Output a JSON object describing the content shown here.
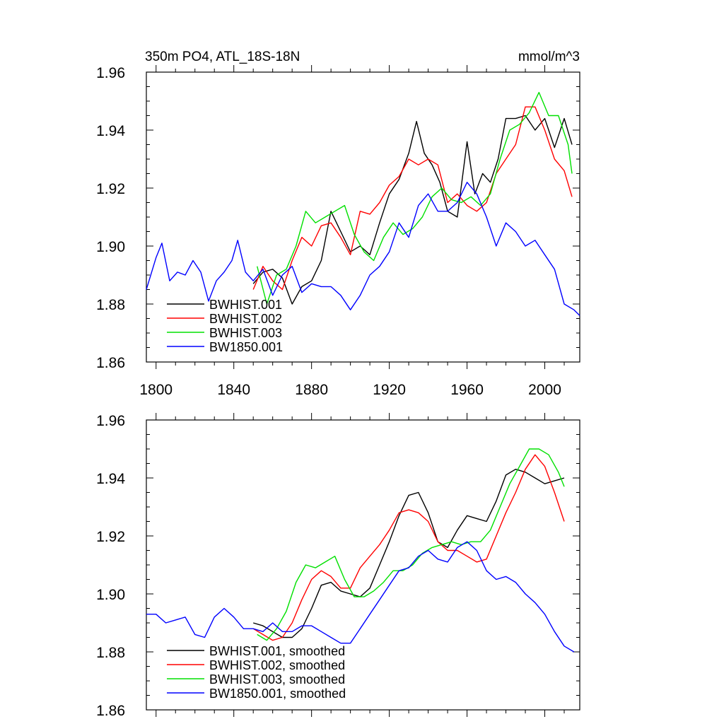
{
  "chart_data": [
    {
      "type": "line",
      "title": "350m PO4, ATL_18S-18N",
      "units": "mmol/m^3",
      "xlim": [
        1795,
        2018
      ],
      "ylim": [
        1.86,
        1.96
      ],
      "xticks": [
        1800,
        1840,
        1880,
        1920,
        1960,
        2000
      ],
      "xtick_labels": [
        "1800",
        "1840",
        "1880",
        "1920",
        "1960",
        "2000"
      ],
      "yticks": [
        1.86,
        1.88,
        1.9,
        1.92,
        1.94,
        1.96
      ],
      "ytick_labels": [
        "1.86",
        "1.88",
        "1.90",
        "1.92",
        "1.94",
        "1.96"
      ],
      "legend_position": "bottom-left",
      "series": [
        {
          "name": "BWHIST.001",
          "color": "#000000",
          "x": [
            1850,
            1855,
            1860,
            1865,
            1870,
            1875,
            1880,
            1885,
            1890,
            1895,
            1900,
            1905,
            1910,
            1915,
            1920,
            1925,
            1930,
            1934,
            1938,
            1942,
            1946,
            1950,
            1955,
            1960,
            1964,
            1968,
            1972,
            1976,
            1980,
            1985,
            1990,
            1995,
            2000,
            2005,
            2010,
            2014
          ],
          "y": [
            1.887,
            1.891,
            1.892,
            1.889,
            1.88,
            1.886,
            1.888,
            1.895,
            1.912,
            1.905,
            1.898,
            1.9,
            1.897,
            1.908,
            1.918,
            1.923,
            1.932,
            1.943,
            1.932,
            1.928,
            1.922,
            1.912,
            1.91,
            1.936,
            1.918,
            1.925,
            1.922,
            1.93,
            1.944,
            1.944,
            1.945,
            1.94,
            1.944,
            1.934,
            1.944,
            1.935
          ]
        },
        {
          "name": "BWHIST.002",
          "color": "#ff0000",
          "x": [
            1850,
            1855,
            1860,
            1865,
            1870,
            1875,
            1880,
            1885,
            1890,
            1895,
            1900,
            1905,
            1910,
            1915,
            1920,
            1925,
            1930,
            1935,
            1940,
            1945,
            1950,
            1955,
            1960,
            1965,
            1970,
            1975,
            1980,
            1985,
            1990,
            1995,
            2000,
            2005,
            2010,
            2014
          ],
          "y": [
            1.885,
            1.893,
            1.888,
            1.885,
            1.895,
            1.903,
            1.9,
            1.907,
            1.908,
            1.903,
            1.897,
            1.912,
            1.911,
            1.915,
            1.921,
            1.924,
            1.93,
            1.928,
            1.93,
            1.928,
            1.915,
            1.918,
            1.914,
            1.912,
            1.915,
            1.925,
            1.93,
            1.935,
            1.948,
            1.948,
            1.94,
            1.93,
            1.926,
            1.917
          ]
        },
        {
          "name": "BWHIST.003",
          "color": "#00e000",
          "x": [
            1852,
            1857,
            1862,
            1867,
            1872,
            1877,
            1882,
            1887,
            1892,
            1897,
            1902,
            1907,
            1912,
            1917,
            1922,
            1927,
            1932,
            1937,
            1942,
            1947,
            1952,
            1957,
            1962,
            1967,
            1972,
            1977,
            1982,
            1987,
            1992,
            1997,
            2002,
            2007,
            2012,
            2014
          ],
          "y": [
            1.893,
            1.88,
            1.89,
            1.892,
            1.9,
            1.912,
            1.908,
            1.91,
            1.912,
            1.914,
            1.904,
            1.898,
            1.895,
            1.903,
            1.908,
            1.904,
            1.906,
            1.91,
            1.917,
            1.92,
            1.916,
            1.915,
            1.917,
            1.914,
            1.918,
            1.93,
            1.94,
            1.942,
            1.946,
            1.953,
            1.945,
            1.945,
            1.935,
            1.925
          ]
        },
        {
          "name": "BW1850.001",
          "color": "#0000ff",
          "x": [
            1795,
            1800,
            1803,
            1807,
            1811,
            1815,
            1819,
            1823,
            1827,
            1831,
            1835,
            1839,
            1842,
            1846,
            1850,
            1855,
            1860,
            1865,
            1870,
            1875,
            1880,
            1885,
            1890,
            1895,
            1900,
            1905,
            1910,
            1915,
            1920,
            1925,
            1930,
            1935,
            1940,
            1945,
            1950,
            1955,
            1960,
            1965,
            1970,
            1975,
            1980,
            1985,
            1990,
            1995,
            2000,
            2005,
            2010,
            2015,
            2018
          ],
          "y": [
            1.885,
            1.896,
            1.901,
            1.888,
            1.891,
            1.89,
            1.895,
            1.891,
            1.881,
            1.888,
            1.891,
            1.895,
            1.902,
            1.891,
            1.888,
            1.892,
            1.883,
            1.89,
            1.893,
            1.884,
            1.887,
            1.886,
            1.886,
            1.883,
            1.878,
            1.883,
            1.89,
            1.893,
            1.898,
            1.908,
            1.903,
            1.914,
            1.918,
            1.912,
            1.912,
            1.915,
            1.922,
            1.918,
            1.91,
            1.9,
            1.908,
            1.905,
            1.9,
            1.902,
            1.897,
            1.892,
            1.88,
            1.878,
            1.876
          ]
        }
      ]
    },
    {
      "type": "line",
      "xlim": [
        1795,
        2018
      ],
      "ylim": [
        1.86,
        1.96
      ],
      "xticks": [
        1800,
        1840,
        1880,
        1920,
        1960,
        2000
      ],
      "yticks": [
        1.86,
        1.88,
        1.9,
        1.92,
        1.94,
        1.96
      ],
      "ytick_labels": [
        "1.86",
        "1.88",
        "1.90",
        "1.92",
        "1.94",
        "1.96"
      ],
      "legend_position": "bottom-left",
      "series": [
        {
          "name": "BWHIST.001, smoothed",
          "color": "#000000",
          "x": [
            1850,
            1855,
            1860,
            1865,
            1870,
            1875,
            1880,
            1885,
            1890,
            1895,
            1900,
            1905,
            1910,
            1915,
            1920,
            1925,
            1930,
            1935,
            1940,
            1945,
            1950,
            1955,
            1960,
            1965,
            1970,
            1975,
            1980,
            1985,
            1990,
            1995,
            2000,
            2005,
            2010
          ],
          "y": [
            1.89,
            1.889,
            1.887,
            1.885,
            1.885,
            1.888,
            1.895,
            1.903,
            1.904,
            1.901,
            1.9,
            1.899,
            1.902,
            1.91,
            1.918,
            1.927,
            1.934,
            1.935,
            1.928,
            1.918,
            1.916,
            1.922,
            1.927,
            1.926,
            1.925,
            1.932,
            1.941,
            1.943,
            1.942,
            1.94,
            1.938,
            1.939,
            1.94
          ]
        },
        {
          "name": "BWHIST.002, smoothed",
          "color": "#ff0000",
          "x": [
            1850,
            1855,
            1860,
            1865,
            1870,
            1875,
            1880,
            1885,
            1890,
            1895,
            1900,
            1905,
            1910,
            1915,
            1920,
            1925,
            1930,
            1935,
            1940,
            1945,
            1950,
            1955,
            1960,
            1965,
            1970,
            1975,
            1980,
            1985,
            1990,
            1995,
            2000,
            2005,
            2010
          ],
          "y": [
            1.888,
            1.886,
            1.884,
            1.885,
            1.89,
            1.898,
            1.905,
            1.908,
            1.906,
            1.902,
            1.902,
            1.909,
            1.913,
            1.917,
            1.922,
            1.928,
            1.929,
            1.928,
            1.925,
            1.918,
            1.915,
            1.915,
            1.913,
            1.911,
            1.912,
            1.92,
            1.928,
            1.935,
            1.943,
            1.948,
            1.944,
            1.935,
            1.925
          ]
        },
        {
          "name": "BWHIST.003, smoothed",
          "color": "#00e000",
          "x": [
            1852,
            1857,
            1862,
            1867,
            1872,
            1877,
            1882,
            1887,
            1892,
            1897,
            1902,
            1907,
            1912,
            1917,
            1922,
            1927,
            1932,
            1937,
            1942,
            1947,
            1952,
            1957,
            1962,
            1967,
            1972,
            1977,
            1982,
            1987,
            1992,
            1997,
            2002,
            2007,
            2010
          ],
          "y": [
            1.886,
            1.884,
            1.888,
            1.894,
            1.904,
            1.91,
            1.909,
            1.911,
            1.913,
            1.905,
            1.899,
            1.899,
            1.901,
            1.904,
            1.908,
            1.908,
            1.91,
            1.914,
            1.916,
            1.917,
            1.918,
            1.917,
            1.918,
            1.918,
            1.922,
            1.93,
            1.938,
            1.944,
            1.95,
            1.95,
            1.948,
            1.942,
            1.937
          ]
        },
        {
          "name": "BW1850.001, smoothed",
          "color": "#0000ff",
          "x": [
            1795,
            1800,
            1805,
            1810,
            1815,
            1820,
            1825,
            1830,
            1835,
            1840,
            1845,
            1850,
            1855,
            1860,
            1865,
            1870,
            1875,
            1880,
            1885,
            1890,
            1895,
            1900,
            1905,
            1910,
            1915,
            1920,
            1925,
            1930,
            1935,
            1940,
            1945,
            1950,
            1955,
            1960,
            1965,
            1970,
            1975,
            1980,
            1985,
            1990,
            1995,
            2000,
            2005,
            2010,
            2015
          ],
          "y": [
            1.893,
            1.893,
            1.89,
            1.891,
            1.892,
            1.886,
            1.885,
            1.892,
            1.895,
            1.892,
            1.888,
            1.888,
            1.887,
            1.89,
            1.887,
            1.887,
            1.889,
            1.889,
            1.887,
            1.885,
            1.883,
            1.883,
            1.888,
            1.893,
            1.898,
            1.903,
            1.908,
            1.909,
            1.913,
            1.915,
            1.912,
            1.911,
            1.916,
            1.918,
            1.915,
            1.908,
            1.905,
            1.906,
            1.904,
            1.9,
            1.897,
            1.893,
            1.887,
            1.882,
            1.88
          ]
        }
      ]
    }
  ]
}
